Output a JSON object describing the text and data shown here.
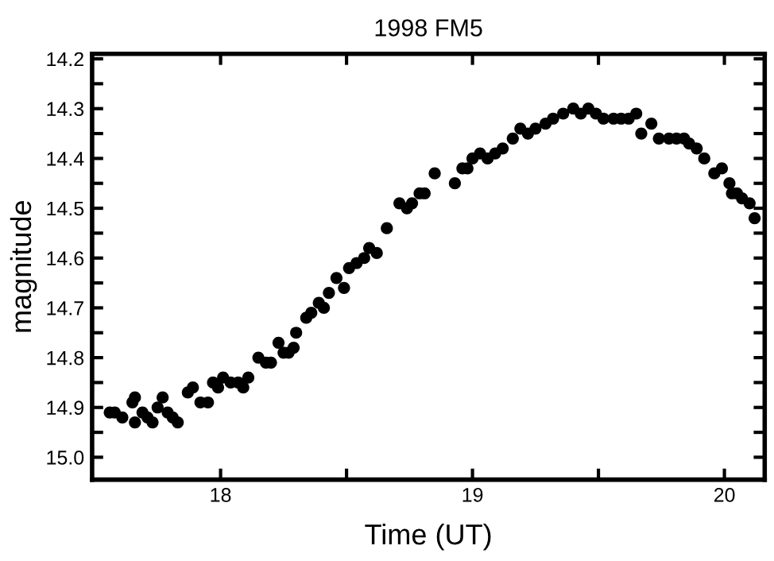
{
  "chart_data": {
    "type": "scatter",
    "title": "1998 FM5",
    "xlabel": "Time (UT)",
    "ylabel": "magnitude",
    "xlim": [
      17.49,
      20.16
    ],
    "ylim": [
      15.045,
      14.19
    ],
    "xticks": [
      18,
      {
        "value": 18.5,
        "label": null
      },
      19,
      {
        "value": 19.5,
        "label": null
      },
      20
    ],
    "yticks": [
      14.2,
      {
        "value": 14.25,
        "label": null
      },
      14.3,
      {
        "value": 14.35,
        "label": null
      },
      14.4,
      {
        "value": 14.45,
        "label": null
      },
      14.5,
      {
        "value": 14.55,
        "label": null
      },
      14.6,
      {
        "value": 14.65,
        "label": null
      },
      14.7,
      {
        "value": 14.75,
        "label": null
      },
      14.8,
      {
        "value": 14.85,
        "label": null
      },
      14.9,
      {
        "value": 14.95,
        "label": null
      },
      {
        "value": 15.0,
        "label": "15.0"
      }
    ],
    "grid": false,
    "legend": false,
    "marker": "circle",
    "series": [
      {
        "color": "#000000",
        "x": [
          17.56,
          17.58,
          17.61,
          17.65,
          17.66,
          17.66,
          17.69,
          17.71,
          17.73,
          17.75,
          17.77,
          17.79,
          17.81,
          17.83,
          17.87,
          17.89,
          17.92,
          17.95,
          17.97,
          17.99,
          18.01,
          18.04,
          18.07,
          18.09,
          18.11,
          18.15,
          18.18,
          18.2,
          18.23,
          18.25,
          18.27,
          18.29,
          18.3,
          18.34,
          18.36,
          18.39,
          18.41,
          18.43,
          18.46,
          18.49,
          18.51,
          18.54,
          18.57,
          18.59,
          18.62,
          18.66,
          18.71,
          18.74,
          18.76,
          18.79,
          18.81,
          18.85,
          18.93,
          18.96,
          18.98,
          19.0,
          19.03,
          19.06,
          19.09,
          19.12,
          19.16,
          19.19,
          19.22,
          19.25,
          19.29,
          19.32,
          19.36,
          19.4,
          19.43,
          19.46,
          19.49,
          19.52,
          19.56,
          19.59,
          19.62,
          19.65,
          19.67,
          19.71,
          19.74,
          19.78,
          19.81,
          19.84,
          19.86,
          19.89,
          19.92,
          19.96,
          19.99,
          20.02,
          20.03,
          20.05,
          20.07,
          20.1,
          20.12
        ],
        "values": [
          14.91,
          14.91,
          14.92,
          14.89,
          14.88,
          14.93,
          14.91,
          14.92,
          14.93,
          14.9,
          14.88,
          14.91,
          14.92,
          14.93,
          14.87,
          14.86,
          14.89,
          14.89,
          14.85,
          14.86,
          14.84,
          14.85,
          14.85,
          14.86,
          14.84,
          14.8,
          14.81,
          14.81,
          14.77,
          14.79,
          14.79,
          14.78,
          14.75,
          14.72,
          14.71,
          14.69,
          14.7,
          14.67,
          14.64,
          14.66,
          14.62,
          14.61,
          14.6,
          14.58,
          14.59,
          14.54,
          14.49,
          14.5,
          14.49,
          14.47,
          14.47,
          14.43,
          14.45,
          14.42,
          14.42,
          14.4,
          14.39,
          14.4,
          14.39,
          14.38,
          14.36,
          14.34,
          14.35,
          14.34,
          14.33,
          14.32,
          14.31,
          14.3,
          14.31,
          14.3,
          14.31,
          14.32,
          14.32,
          14.32,
          14.32,
          14.31,
          14.35,
          14.33,
          14.36,
          14.36,
          14.36,
          14.36,
          14.37,
          14.38,
          14.4,
          14.43,
          14.42,
          14.45,
          14.47,
          14.47,
          14.48,
          14.49,
          14.52
        ]
      }
    ]
  }
}
